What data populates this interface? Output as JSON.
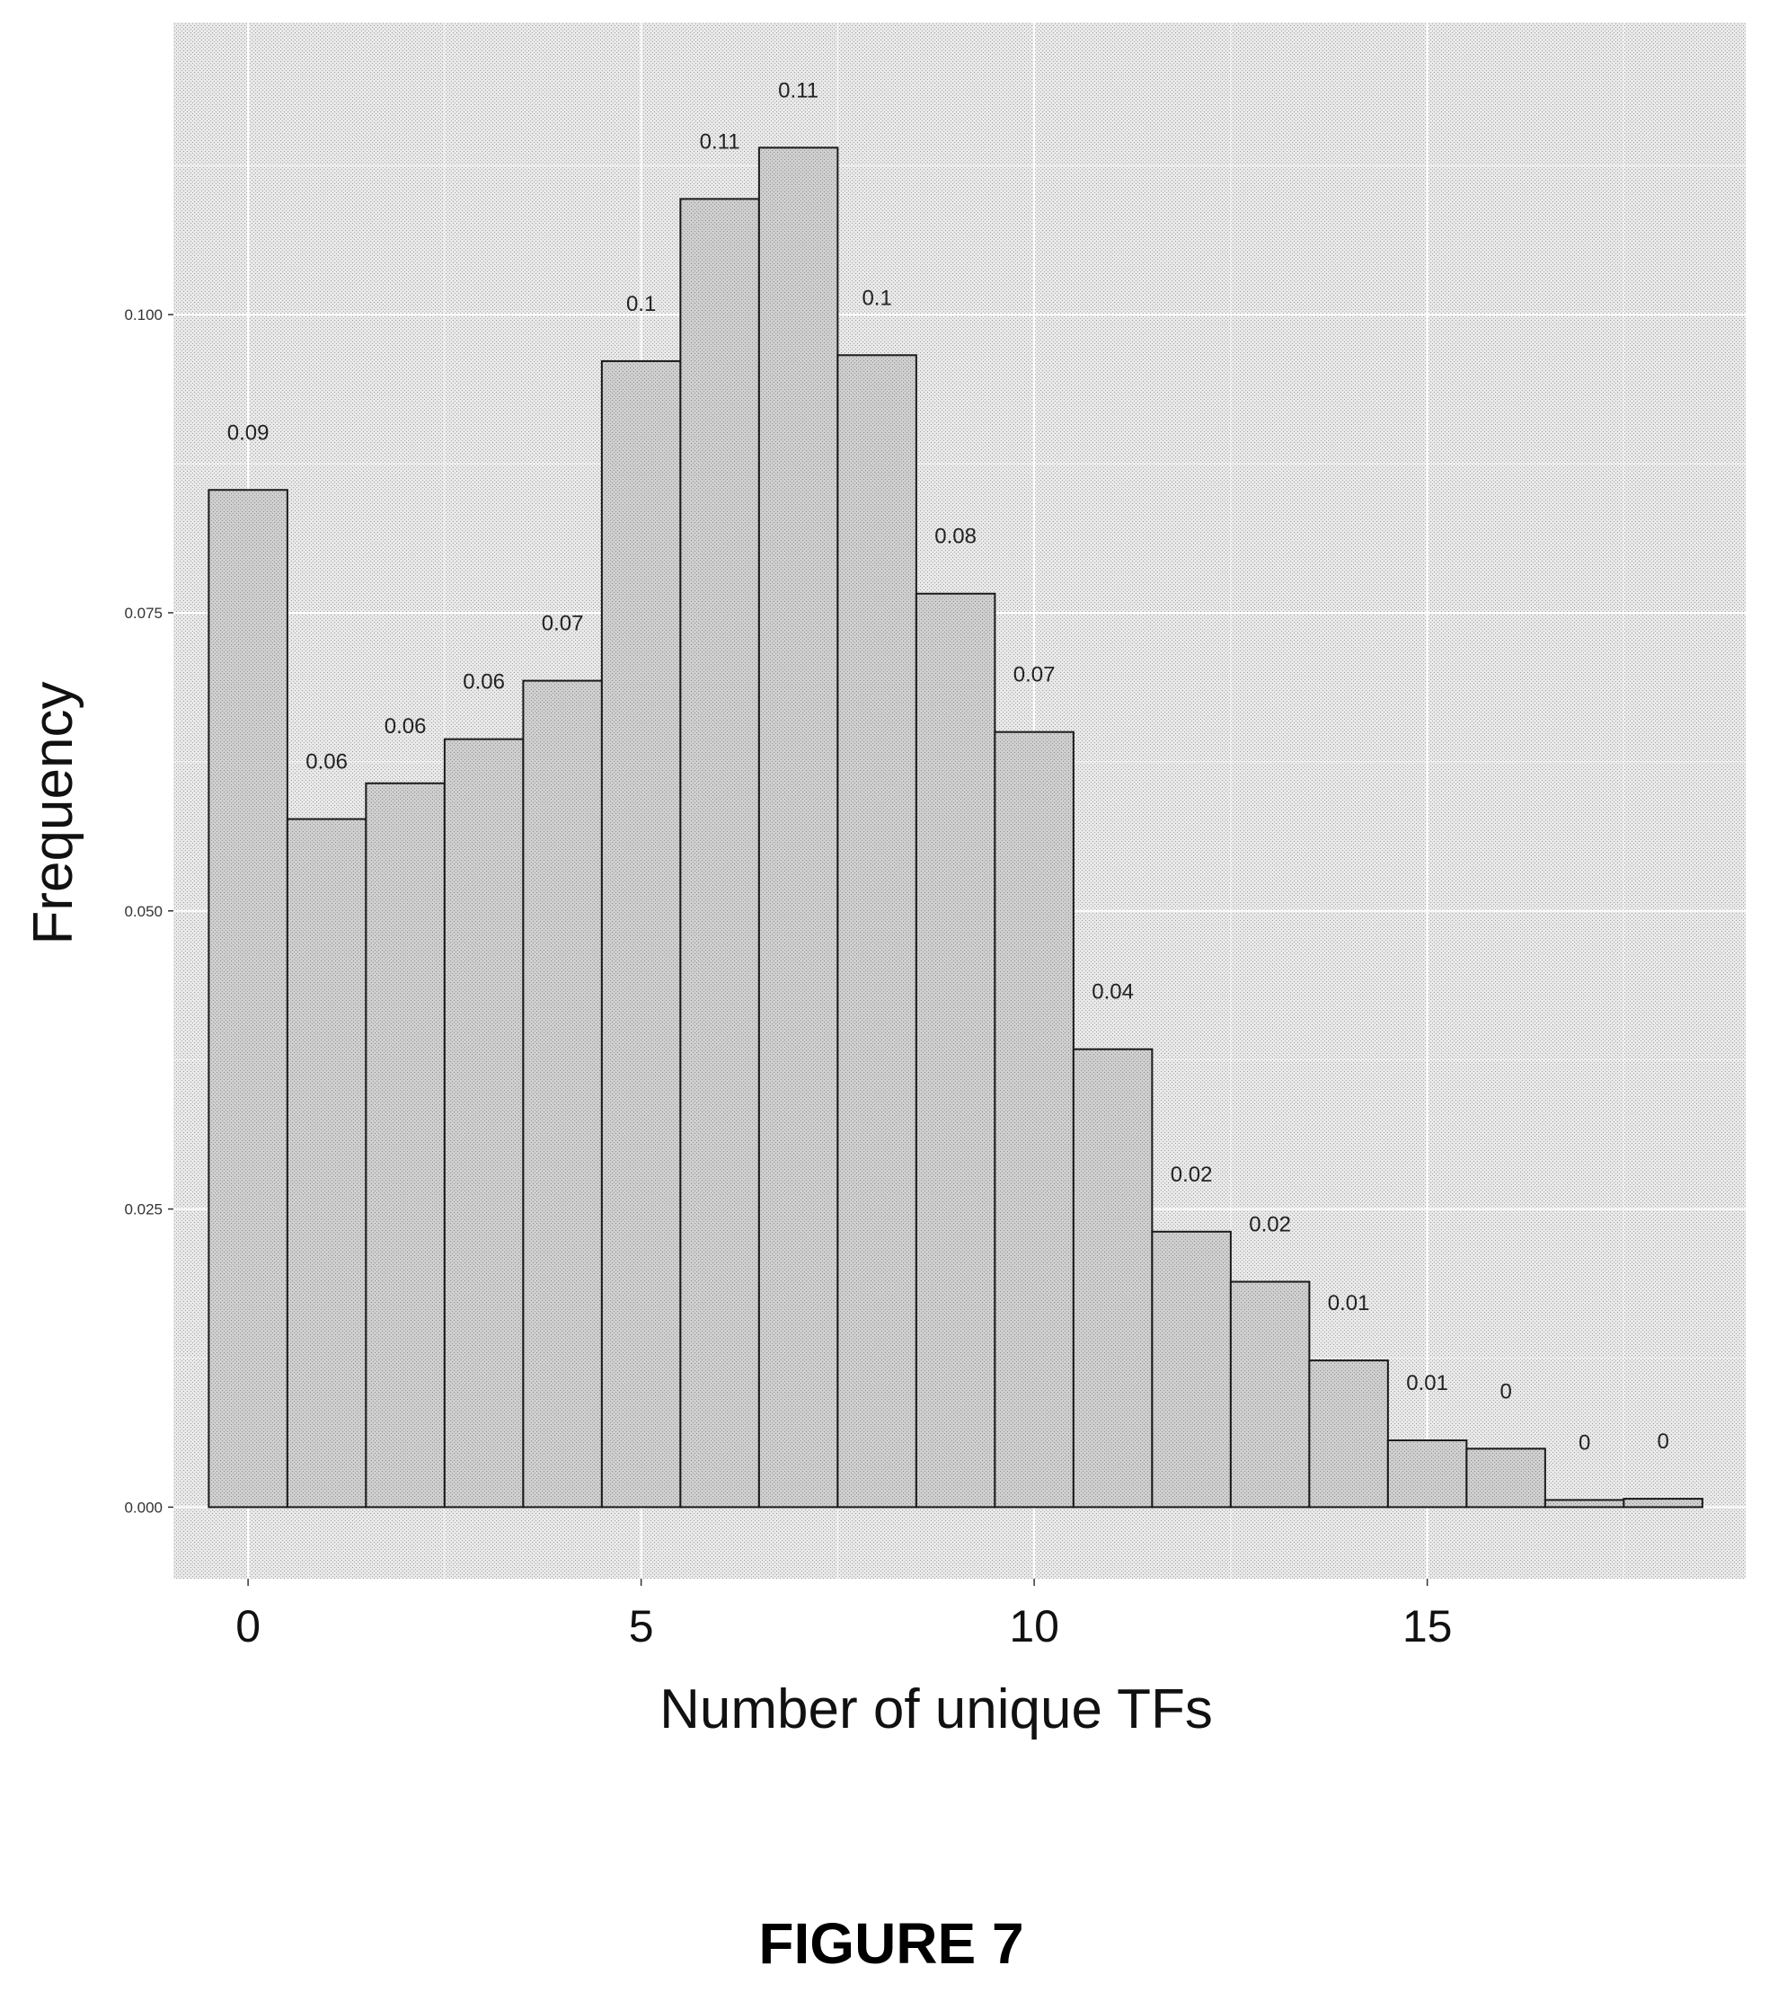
{
  "figure_label": "FIGURE 7",
  "chart_data": {
    "type": "bar",
    "xlabel": "Number of unique TFs",
    "ylabel": "Frequency",
    "x": [
      0,
      1,
      2,
      3,
      4,
      5,
      6,
      7,
      8,
      9,
      10,
      11,
      12,
      13,
      14,
      15,
      16,
      17,
      18
    ],
    "values": [
      0.0853,
      0.0577,
      0.0607,
      0.0644,
      0.0693,
      0.0961,
      0.1097,
      0.114,
      0.0966,
      0.0766,
      0.065,
      0.0384,
      0.0231,
      0.0189,
      0.0123,
      0.0056,
      0.0049,
      0.0006,
      0.0007
    ],
    "data_labels": [
      "0.09",
      "0.06",
      "0.06",
      "0.06",
      "0.07",
      "0.1",
      "0.11",
      "0.11",
      "0.1",
      "0.08",
      "0.07",
      "0.04",
      "0.02",
      "0.02",
      "0.01",
      "0.01",
      "0",
      "0",
      "0"
    ],
    "xlim": [
      -0.95,
      19.05
    ],
    "ylim": [
      -0.006,
      0.1245
    ],
    "x_ticks": [
      0,
      5,
      10,
      15
    ],
    "x_tick_labels": [
      "0",
      "5",
      "10",
      "15"
    ],
    "y_ticks": [
      0,
      0.025,
      0.05,
      0.075,
      0.1
    ],
    "y_tick_labels": [
      "0.000",
      "0.025",
      "0.050",
      "0.075",
      "0.100"
    ],
    "grid": true,
    "colors": {
      "bar_fill": "#c8c8c8",
      "bar_stroke": "#1a1a1a",
      "panel_bg": "#e6e6e6",
      "grid": "#ffffff"
    }
  }
}
